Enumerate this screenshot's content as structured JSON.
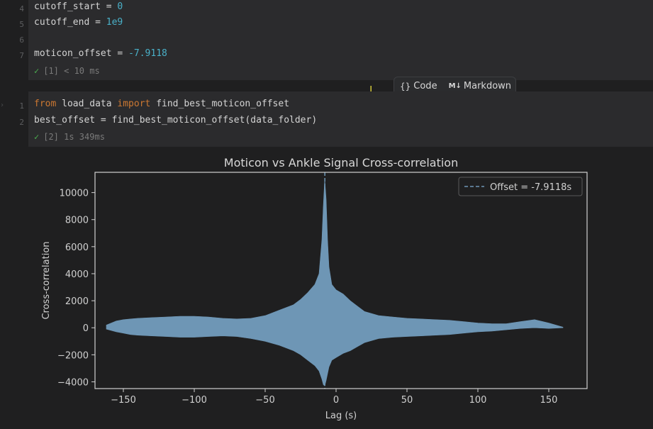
{
  "cell1": {
    "lines": [
      {
        "n": "4",
        "code": "cutoff_start = ",
        "lit": "0"
      },
      {
        "n": "5",
        "code": "cutoff_end = ",
        "lit": "1e9"
      },
      {
        "n": "6",
        "code": "",
        "lit": ""
      },
      {
        "n": "7",
        "code": "moticon_offset = ",
        "lit": "-7.9118"
      }
    ],
    "status": "[1] < 10 ms"
  },
  "add_cell_toolbar": {
    "code_label": "Code",
    "markdown_label": "Markdown"
  },
  "cell2": {
    "line1": {
      "n": "1",
      "kw_from": "from",
      "mod": " load_data ",
      "kw_import": "import",
      "rest": " find_best_moticon_offset"
    },
    "line2": {
      "n": "2",
      "code": "best_offset = find_best_moticon_offset(data_folder)"
    },
    "status": "[2] 1s 349ms"
  },
  "colors": {
    "fill": "#6e96b5",
    "offset_line": "#6e96b5",
    "accent_number": "#4ab0c8",
    "keyword": "#cc7832"
  },
  "chart_data": {
    "type": "area",
    "title": "Moticon vs Ankle Signal Cross-correlation",
    "xlabel": "Lag (s)",
    "ylabel": "Cross-correlation",
    "xlim": [
      -170,
      177
    ],
    "ylim": [
      -4500,
      11500
    ],
    "xticks": [
      -150,
      -100,
      -50,
      0,
      50,
      100,
      150
    ],
    "xtick_labels": [
      "−150",
      "−100",
      "−50",
      "0",
      "50",
      "100",
      "150"
    ],
    "yticks": [
      -4000,
      -2000,
      0,
      2000,
      4000,
      6000,
      8000,
      10000
    ],
    "ytick_labels": [
      "−4000",
      "−2000",
      "0",
      "2000",
      "4000",
      "6000",
      "8000",
      "10000"
    ],
    "grid": false,
    "legend": {
      "placement": "top-right",
      "entries": [
        "Offset = -7.9118s"
      ]
    },
    "offset_line_x": -7.9118,
    "envelope": {
      "x": [
        -162,
        -155,
        -150,
        -145,
        -140,
        -130,
        -120,
        -110,
        -100,
        -90,
        -80,
        -70,
        -60,
        -50,
        -40,
        -30,
        -25,
        -20,
        -15,
        -12,
        -10,
        -9,
        -8,
        -7,
        -6,
        -5,
        -3,
        0,
        5,
        10,
        15,
        20,
        30,
        40,
        50,
        60,
        70,
        80,
        90,
        100,
        110,
        120,
        130,
        140,
        150,
        160
      ],
      "upper": [
        200,
        500,
        600,
        650,
        700,
        750,
        800,
        850,
        850,
        800,
        700,
        650,
        700,
        900,
        1300,
        1700,
        2100,
        2600,
        3200,
        4000,
        6500,
        9000,
        11000,
        9500,
        6500,
        4500,
        3200,
        2800,
        2500,
        2000,
        1600,
        1200,
        900,
        800,
        700,
        650,
        600,
        550,
        450,
        350,
        300,
        300,
        450,
        600,
        350,
        50
      ],
      "lower": [
        -100,
        -300,
        -400,
        -500,
        -550,
        -600,
        -650,
        -700,
        -700,
        -650,
        -600,
        -650,
        -800,
        -1000,
        -1300,
        -1700,
        -2000,
        -2400,
        -2800,
        -3200,
        -3800,
        -4200,
        -4300,
        -3900,
        -3400,
        -2900,
        -2400,
        -2200,
        -1900,
        -1700,
        -1400,
        -1100,
        -800,
        -700,
        -650,
        -600,
        -550,
        -500,
        -400,
        -300,
        -250,
        -150,
        -50,
        0,
        -50,
        0
      ]
    }
  }
}
